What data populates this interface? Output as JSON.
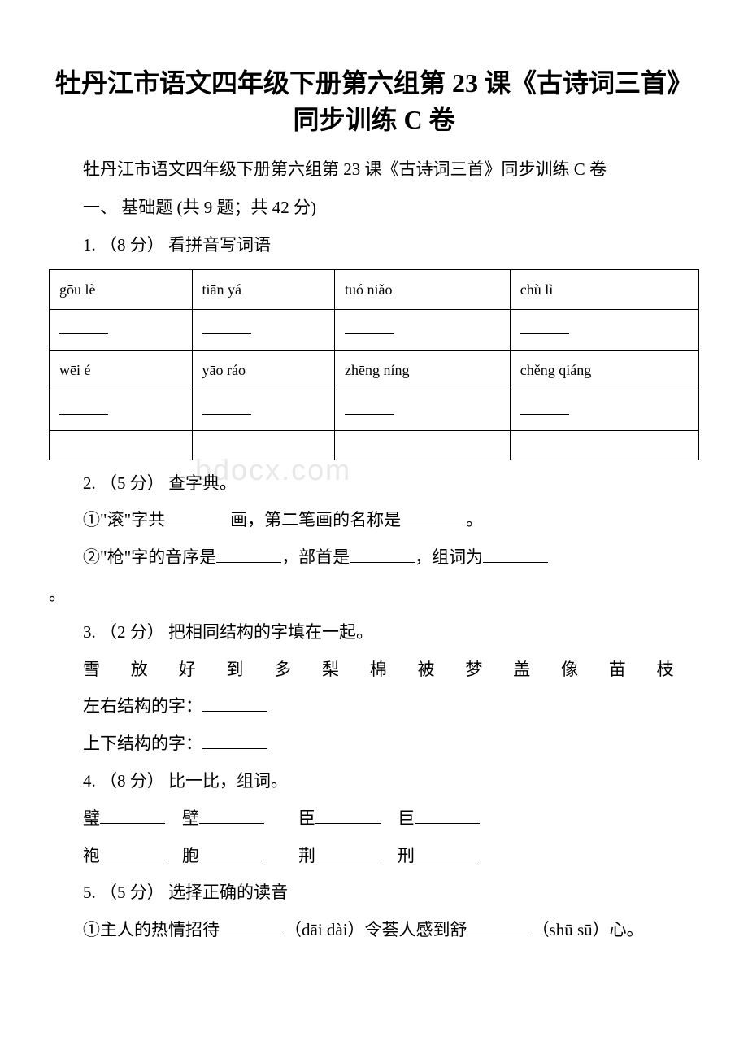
{
  "title": "牡丹江市语文四年级下册第六组第 23 课《古诗词三首》同步训练 C 卷",
  "subtitle": "牡丹江市语文四年级下册第六组第 23 课《古诗词三首》同步训练 C 卷",
  "section1": {
    "label": "一、 基础题 (共 9 题；共 42 分)"
  },
  "q1": {
    "label": "1. （8 分） 看拼音写词语",
    "table": {
      "row1": [
        "gōu lè",
        "tiān yá",
        "tuó niǎo",
        "chù lì"
      ],
      "row3": [
        "wēi é",
        "yāo ráo",
        "zhēng níng",
        "chěng qiáng"
      ]
    }
  },
  "q2": {
    "label": "2. （5 分） 查字典。",
    "line1_part1": "①\"滚\"字共",
    "line1_part2": "画，第二笔画的名称是",
    "line1_part3": "。",
    "line2_part1": "②\"枪\"字的音序是",
    "line2_part2": "，部首是",
    "line2_part3": "，组词为",
    "line2_part4": "。"
  },
  "q3": {
    "label": "3. （2 分） 把相同结构的字填在一起。",
    "chars": "雪　放　好　到　多　梨　棉　被　梦　盖　像　苗　枝",
    "line1": "左右结构的字：",
    "line2": "上下结构的字："
  },
  "q4": {
    "label": "4. （8 分） 比一比，组词。",
    "row1": [
      "璧",
      "壁",
      "臣",
      "巨"
    ],
    "row2": [
      "袍",
      "胞",
      "荆",
      "刑"
    ]
  },
  "q5": {
    "label": "5. （5 分） 选择正确的读音",
    "line1_part1": "①主人的热情招待",
    "line1_part2": "（dāi  dài）令荟人感到舒",
    "line1_part3": "（shū  sū）心。"
  },
  "watermark": "bdocx.com"
}
